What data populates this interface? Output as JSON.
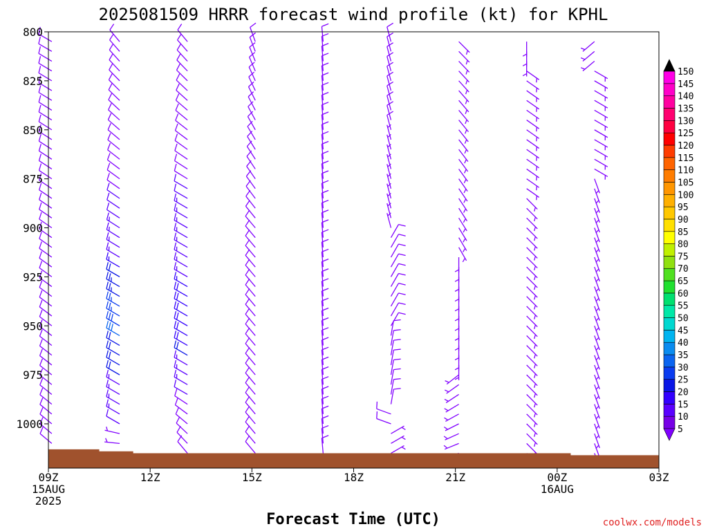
{
  "chart_data": {
    "type": "wind_barb_time_height",
    "title": "2025081509 HRRR forecast wind profile (kt) for KPHL",
    "xlabel": "Forecast Time (UTC)",
    "ylabel": "",
    "y_axis": {
      "label": "",
      "ticks": [
        800,
        825,
        850,
        875,
        900,
        925,
        950,
        975,
        1000
      ],
      "range": [
        800,
        1022
      ],
      "inverted": true
    },
    "x_axis": {
      "ticks": [
        {
          "hour": 0,
          "lines": [
            "09Z",
            "15AUG",
            "2025"
          ]
        },
        {
          "hour": 3,
          "lines": [
            "12Z"
          ]
        },
        {
          "hour": 6,
          "lines": [
            "15Z"
          ]
        },
        {
          "hour": 9,
          "lines": [
            "18Z"
          ]
        },
        {
          "hour": 12,
          "lines": [
            "21Z"
          ]
        },
        {
          "hour": 15,
          "lines": [
            "00Z",
            "16AUG"
          ]
        },
        {
          "hour": 18,
          "lines": [
            "03Z"
          ]
        }
      ],
      "range": [
        0,
        18
      ]
    },
    "levels": [
      805,
      810,
      815,
      820,
      825,
      830,
      835,
      840,
      845,
      850,
      855,
      860,
      865,
      870,
      875,
      880,
      885,
      890,
      895,
      900,
      905,
      910,
      915,
      920,
      925,
      930,
      935,
      940,
      945,
      950,
      955,
      960,
      965,
      970,
      975,
      980,
      985,
      990,
      995,
      1000,
      1005,
      1010,
      1015
    ],
    "columns": [
      {
        "hour": 0.1,
        "surface_pressure": 1013,
        "segments": [
          [
            805,
            1013,
            300,
            8,
            310,
            8
          ]
        ]
      },
      {
        "hour": 2.1,
        "surface_pressure": 1014,
        "segments": [
          [
            805,
            880,
            320,
            8,
            305,
            8
          ],
          [
            880,
            920,
            305,
            10,
            300,
            15
          ],
          [
            920,
            955,
            300,
            20,
            300,
            30
          ],
          [
            955,
            975,
            300,
            22,
            300,
            22
          ],
          [
            975,
            1000,
            300,
            15,
            300,
            12
          ],
          [
            1000,
            1014,
            290,
            8,
            270,
            5
          ]
        ]
      },
      {
        "hour": 4.1,
        "surface_pressure": 1015,
        "segments": [
          [
            805,
            880,
            320,
            8,
            300,
            10
          ],
          [
            880,
            930,
            300,
            12,
            300,
            15
          ],
          [
            930,
            965,
            300,
            18,
            300,
            20
          ],
          [
            965,
            985,
            300,
            15,
            300,
            12
          ],
          [
            985,
            1015,
            300,
            10,
            320,
            8
          ]
        ]
      },
      {
        "hour": 6.1,
        "surface_pressure": 1015,
        "segments": [
          [
            805,
            900,
            340,
            8,
            320,
            8
          ],
          [
            900,
            1015,
            320,
            10,
            320,
            8
          ]
        ]
      },
      {
        "hour": 8.1,
        "surface_pressure": 1015,
        "segments": [
          [
            805,
            1015,
            355,
            8,
            355,
            8
          ]
        ]
      },
      {
        "hour": 10.1,
        "surface_pressure": 1015,
        "segments": [
          [
            805,
            900,
            345,
            8,
            345,
            7
          ],
          [
            900,
            950,
            30,
            8,
            30,
            8
          ],
          [
            950,
            990,
            10,
            8,
            10,
            8
          ],
          [
            990,
            1000,
            290,
            8,
            290,
            8
          ],
          [
            1000,
            1015,
            60,
            6,
            60,
            6
          ]
        ]
      },
      {
        "hour": 12.1,
        "surface_pressure": 1015,
        "segments": [
          [
            805,
            910,
            135,
            7,
            150,
            7
          ],
          [
            910,
            970,
            180,
            7,
            180,
            7
          ],
          [
            970,
            1015,
            230,
            7,
            250,
            7
          ]
        ]
      },
      {
        "hour": 14.1,
        "surface_pressure": 1015,
        "segments": [
          [
            805,
            815,
            180,
            7,
            180,
            7
          ],
          [
            815,
            880,
            125,
            7,
            125,
            7
          ],
          [
            880,
            1015,
            135,
            7,
            135,
            7
          ]
        ]
      },
      {
        "hour": 16.1,
        "surface_pressure": 1016,
        "segments": [
          [
            805,
            815,
            230,
            7,
            230,
            7
          ],
          [
            815,
            870,
            120,
            7,
            120,
            7
          ],
          [
            870,
            1016,
            160,
            7,
            160,
            7
          ]
        ]
      }
    ],
    "surface_profile": [
      {
        "hour": 0,
        "pressure": 1013
      },
      {
        "hour": 1.5,
        "pressure": 1014
      },
      {
        "hour": 2.5,
        "pressure": 1015
      },
      {
        "hour": 15.4,
        "pressure": 1016
      },
      {
        "hour": 18,
        "pressure": 1016
      }
    ],
    "colorbar": {
      "levels": [
        5,
        10,
        15,
        20,
        25,
        30,
        35,
        40,
        45,
        50,
        55,
        60,
        65,
        70,
        75,
        80,
        85,
        90,
        95,
        100,
        105,
        110,
        115,
        120,
        125,
        130,
        135,
        140,
        145,
        150
      ],
      "colors": [
        "#7700e6",
        "#5a00ff",
        "#3300ff",
        "#0a16e6",
        "#0a3cf0",
        "#0a64f0",
        "#0a8cf0",
        "#00b4f0",
        "#00d8d0",
        "#00e8a8",
        "#00e070",
        "#20e030",
        "#50e020",
        "#90e010",
        "#c0f000",
        "#ffff00",
        "#ffe000",
        "#ffc800",
        "#ffb000",
        "#ff9600",
        "#ff7d00",
        "#ff6400",
        "#ff3c00",
        "#ff0000",
        "#ff0040",
        "#ff0070",
        "#ff00a0",
        "#ff00c8",
        "#ff00e6",
        "#000000"
      ],
      "below_color": "#8000ff",
      "above_color": "#000000"
    },
    "barb_default_color": "#8000ff",
    "ground_color": "#a0522d",
    "credit": "coolwx.com/models",
    "credit_color": "#e02020"
  }
}
